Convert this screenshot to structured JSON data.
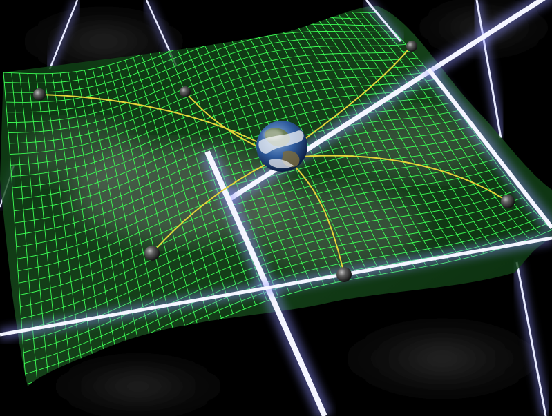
{
  "scene": {
    "description_visible_text": "",
    "colors": {
      "background": "#000000",
      "grid": "#3dff55",
      "grid_fill": "#0d3d12",
      "beam": "#dfe4ff",
      "beam_glow": "#6f72ff",
      "string": "#e6d43a",
      "pulsar": "#4a4a4a",
      "earth_ocean": "#2f5c9e",
      "earth_cloud": "#f2f4f8"
    },
    "pulsar_count": 6
  }
}
